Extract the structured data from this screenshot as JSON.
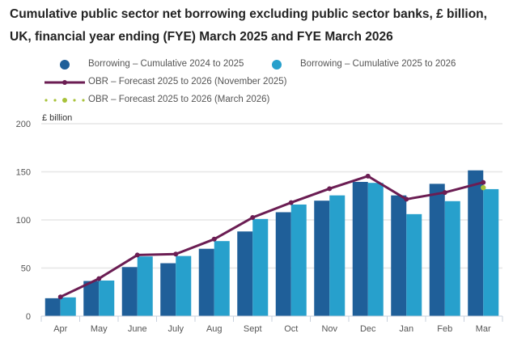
{
  "title": "Cumulative public sector net borrowing excluding public sector banks, £ billion, UK, financial year ending (FYE) March 2025 and FYE March 2026",
  "legend": {
    "series1": "Borrowing – Cumulative 2024 to 2025",
    "series2": "Borrowing – Cumulative 2025 to 2026",
    "series3": "OBR – Forecast 2025 to 2026 (November 2025)",
    "series4": "OBR – Forecast 2025 to 2026 (March 2026)"
  },
  "colors": {
    "series1": "#1f5f99",
    "series2": "#27a0cc",
    "series3": "#6b1d53",
    "series4": "#a8c23a",
    "grid": "#e6e6e6",
    "axis": "#c8d0dc"
  },
  "unit_label": "£ billion",
  "chart_data": {
    "type": "bar",
    "title": "Cumulative public sector net borrowing excluding public sector banks, £ billion, UK, financial year ending (FYE) March 2025 and FYE March 2026",
    "xlabel": "",
    "ylabel": "£ billion",
    "ylim": [
      0,
      200
    ],
    "yticks": [
      0,
      50,
      100,
      150,
      200
    ],
    "grid": true,
    "legend_position": "top",
    "categories": [
      "Apr",
      "May",
      "June",
      "July",
      "Aug",
      "Sept",
      "Oct",
      "Nov",
      "Dec",
      "Jan",
      "Feb",
      "Mar"
    ],
    "series": [
      {
        "name": "Borrowing – Cumulative 2024 to 2025",
        "type": "bar",
        "values": [
          18.6,
          36.5,
          51,
          55,
          70,
          88,
          108,
          120,
          139.5,
          125.5,
          137.5,
          151.5
        ]
      },
      {
        "name": "Borrowing – Cumulative 2025 to 2026",
        "type": "bar",
        "values": [
          19.5,
          37,
          62,
          62.5,
          78,
          101,
          116,
          125.5,
          138.5,
          106,
          119.5,
          132
        ]
      },
      {
        "name": "OBR – Forecast 2025 to 2026 (November 2025)",
        "type": "line",
        "values": [
          20,
          39,
          63.5,
          64.5,
          80,
          102.5,
          118,
          132.5,
          145.5,
          121.5,
          128.5,
          139
        ]
      },
      {
        "name": "OBR – Forecast 2025 to 2026 (March 2026)",
        "type": "dotted",
        "values": [
          null,
          null,
          null,
          null,
          null,
          null,
          null,
          null,
          null,
          null,
          null,
          133.5
        ]
      }
    ]
  }
}
